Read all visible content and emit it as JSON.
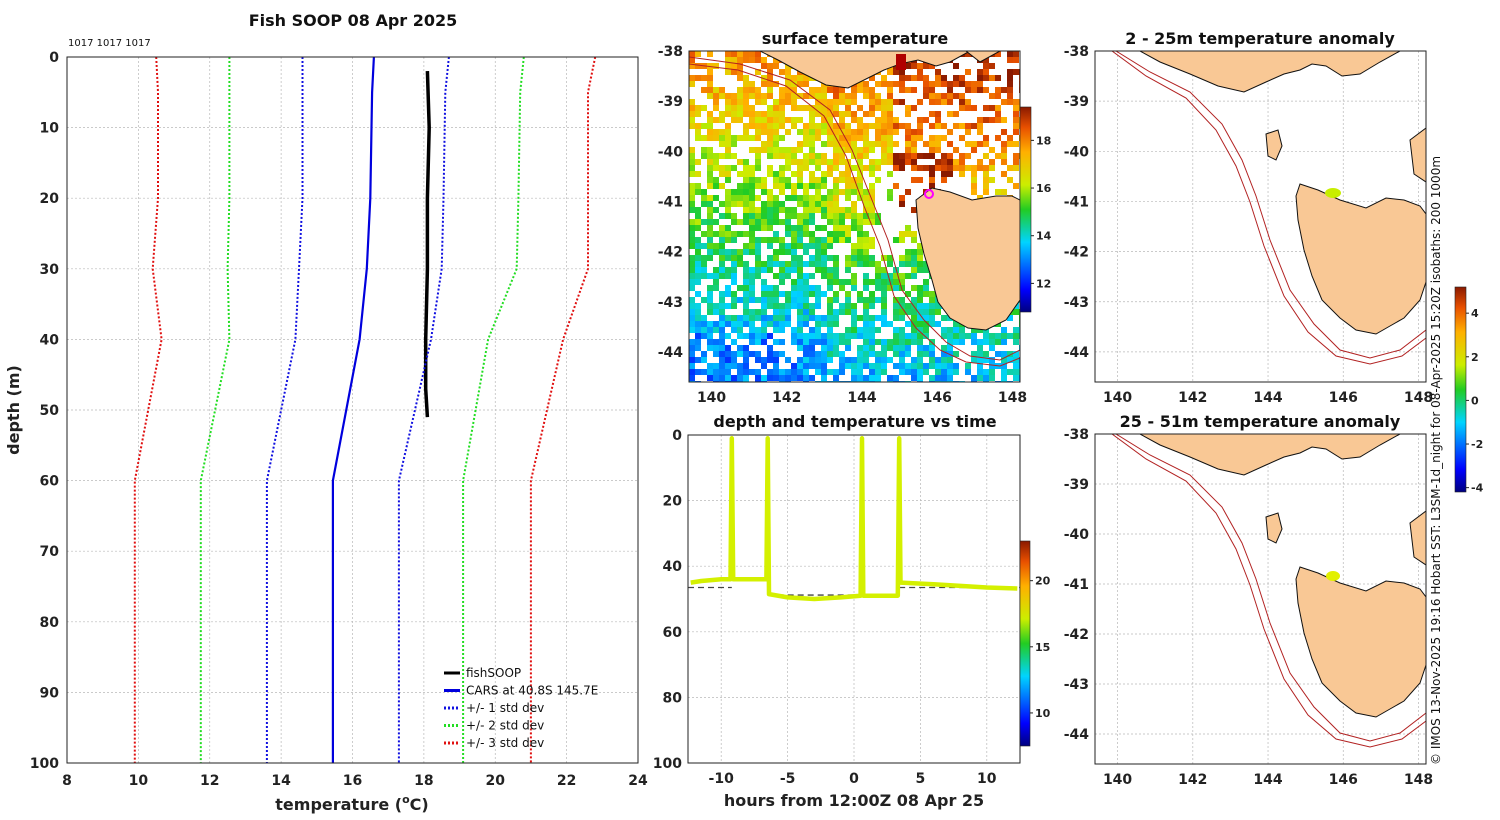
{
  "figure_title": "Fish SOOP 08 Apr 2025",
  "profile_ids": "1017 1017 1017",
  "credit": "© IMOS 13-Nov-2025 19:16 Hobart SST: L3SM-1d_night for 08-Apr-2025 15:20Z isobaths: 200  1000m",
  "colors": {
    "fishsoop": "#000000",
    "cars": "#0000dd",
    "std1": "#1010e0",
    "std2": "#22dd22",
    "std3": "#e01010",
    "track": "#d4f000",
    "land": "#f9c895",
    "isobath": "#b22222"
  },
  "chart_data": [
    {
      "id": "profile",
      "type": "line",
      "title": "Fish SOOP 08 Apr 2025",
      "xlabel": "temperature (°C)",
      "xlabel_main": "temperature (",
      "xlabel_sup": "o",
      "xlabel_end": "C)",
      "ylabel": "depth (m)",
      "xlim": [
        8,
        24
      ],
      "ylim": [
        0,
        100
      ],
      "y_inverted": true,
      "xticks": [
        8,
        10,
        12,
        14,
        16,
        18,
        20,
        22,
        24
      ],
      "yticks": [
        0,
        10,
        20,
        30,
        40,
        50,
        60,
        70,
        80,
        90,
        100
      ],
      "depths": [
        0,
        5,
        20,
        30,
        40,
        60,
        100
      ],
      "series": [
        {
          "name": "fishSOOP",
          "style": "solid",
          "color": "#000000",
          "depths": [
            2,
            10,
            20,
            30,
            40,
            47,
            51
          ],
          "values": [
            18.1,
            18.15,
            18.1,
            18.1,
            18.05,
            18.05,
            18.1
          ]
        },
        {
          "name": "CARS at 40.8S 145.7E",
          "style": "solid",
          "color": "#0000dd",
          "values": [
            16.6,
            16.55,
            16.5,
            16.4,
            16.2,
            15.45,
            15.45
          ]
        },
        {
          "name": "+/- 1 std dev",
          "style": "dotted",
          "color": "#1010e0",
          "values": [
            14.6,
            14.6,
            14.6,
            14.5,
            14.4,
            13.6,
            13.6
          ]
        },
        {
          "name": "+/- 1 std dev upper",
          "style": "dotted",
          "color": "#1010e0",
          "values": [
            18.7,
            18.6,
            18.55,
            18.5,
            18.2,
            17.3,
            17.3
          ]
        },
        {
          "name": "+/- 2 std dev",
          "style": "dotted",
          "color": "#22dd22",
          "values": [
            12.55,
            12.55,
            12.55,
            12.5,
            12.55,
            11.75,
            11.75
          ]
        },
        {
          "name": "+/- 2 std dev upper",
          "style": "dotted",
          "color": "#22dd22",
          "values": [
            20.8,
            20.7,
            20.65,
            20.6,
            19.8,
            19.1,
            19.1
          ]
        },
        {
          "name": "+/- 3 std dev",
          "style": "dotted",
          "color": "#e01010",
          "values": [
            10.5,
            10.55,
            10.55,
            10.4,
            10.65,
            9.9,
            9.9
          ]
        },
        {
          "name": "+/- 3 std dev upper",
          "style": "dotted",
          "color": "#e01010",
          "values": [
            22.8,
            22.6,
            22.6,
            22.6,
            21.9,
            21.0,
            21.0
          ]
        }
      ],
      "legend": [
        "fishSOOP",
        "CARS at 40.8S 145.7E",
        "+/- 1 std dev",
        "+/- 2 std dev",
        "+/- 3 std dev"
      ],
      "legend_position": "bottom-right"
    },
    {
      "id": "sst_map",
      "type": "heatmap",
      "title": "surface temperature",
      "xlim": [
        139.4,
        148.2
      ],
      "ylim": [
        -44.6,
        -38
      ],
      "xticks": [
        140,
        142,
        144,
        146,
        148
      ],
      "yticks": [
        -38,
        -39,
        -40,
        -41,
        -42,
        -43,
        -44
      ],
      "colorbar": {
        "min": 10.8,
        "max": 19.4,
        "ticks": [
          12,
          14,
          16,
          18
        ]
      },
      "marker": {
        "lon": 145.7,
        "lat": -40.9
      }
    },
    {
      "id": "depth_time",
      "type": "line",
      "title": "depth and temperature vs time",
      "xlabel": "hours from 12:00Z 08 Apr 25",
      "xlim": [
        -12.5,
        12.5
      ],
      "ylim": [
        0,
        100
      ],
      "y_inverted": true,
      "xticks": [
        -10,
        -5,
        0,
        5,
        10
      ],
      "yticks": [
        0,
        20,
        40,
        60,
        80,
        100
      ],
      "colorbar": {
        "min": 7.5,
        "max": 23,
        "ticks": [
          10,
          15,
          20
        ]
      },
      "track": {
        "hours": [
          -12.3,
          -11.5,
          -10,
          -9.3,
          -9.2,
          -9.1,
          -6.6,
          -6.5,
          -6.4,
          -5,
          -3,
          -1,
          0.5,
          0.6,
          0.7,
          3.3,
          3.4,
          3.5,
          6,
          8,
          10,
          12.3
        ],
        "depths": [
          45,
          44.5,
          44,
          44,
          1,
          44,
          44,
          1,
          48.5,
          49.5,
          50,
          49.5,
          49,
          1,
          49,
          49,
          1,
          45,
          45.5,
          46,
          46.5,
          46.8
        ]
      },
      "bottom_segments": [
        {
          "hours": [
            -12.5,
            -9.2
          ],
          "depth": 46.5
        },
        {
          "hours": [
            -6.5,
            0.6
          ],
          "depth": 48.8
        },
        {
          "hours": [
            3.4,
            12.5
          ],
          "depth": 46.5
        }
      ]
    },
    {
      "id": "anom_upper",
      "type": "heatmap",
      "title": "2 - 25m temperature anomaly",
      "xlim": [
        139.4,
        148.2
      ],
      "ylim": [
        -44.6,
        -38
      ],
      "xticks": [
        140,
        142,
        144,
        146,
        148
      ],
      "yticks": [
        -38,
        -39,
        -40,
        -41,
        -42,
        -43,
        -44
      ],
      "anomaly_lon": 145.75,
      "anomaly_lat": -40.85
    },
    {
      "id": "anom_lower",
      "type": "heatmap",
      "title": "25 - 51m temperature anomaly",
      "xlim": [
        139.4,
        148.2
      ],
      "ylim": [
        -44.6,
        -38
      ],
      "xticks": [
        140,
        142,
        144,
        146,
        148
      ],
      "yticks": [
        -38,
        -39,
        -40,
        -41,
        -42,
        -43,
        -44
      ],
      "anomaly_lon": 145.75,
      "anomaly_lat": -40.85
    },
    {
      "id": "anom_colorbar",
      "type": "heatmap",
      "colorbar": {
        "min": -4.2,
        "max": 5.2,
        "ticks": [
          4,
          2,
          0,
          -2,
          -4
        ]
      }
    }
  ]
}
